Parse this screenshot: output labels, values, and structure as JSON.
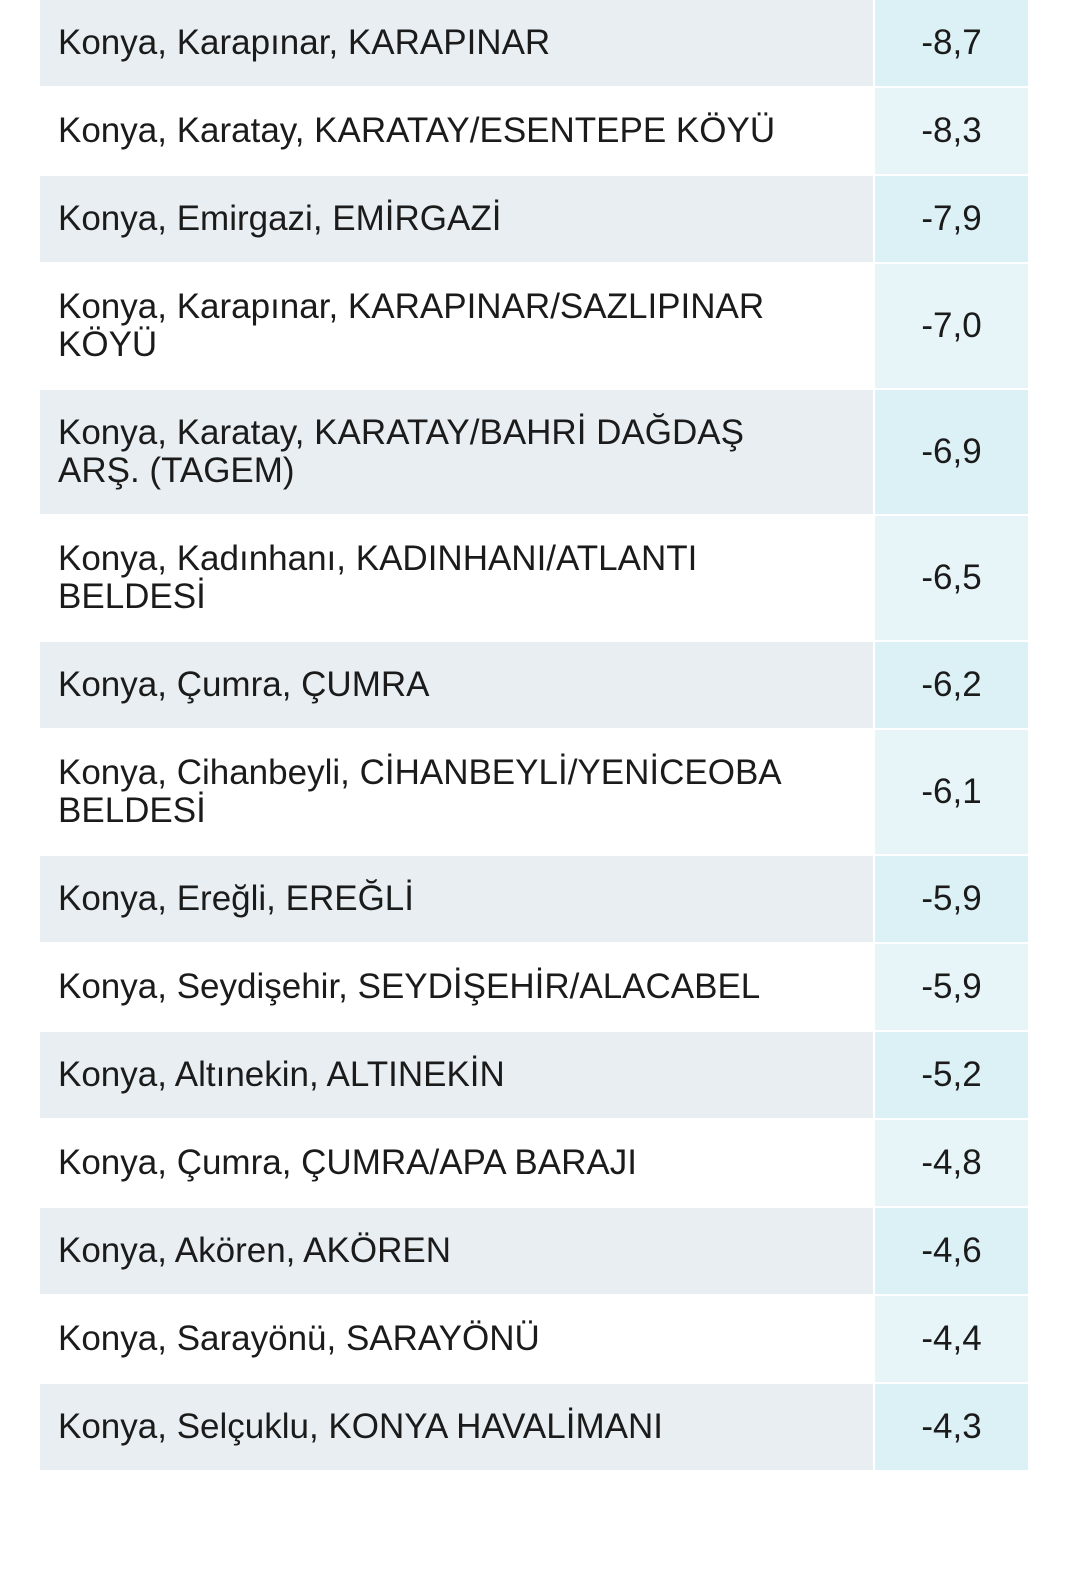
{
  "table": {
    "rows": [
      [
        "Konya, Karapınar, KARAPINAR",
        "-8,7"
      ],
      [
        "Konya, Karatay, KARATAY/ESENTEPE KÖYÜ",
        "-8,3"
      ],
      [
        "Konya, Emirgazi, EMİRGAZİ",
        "-7,9"
      ],
      [
        "Konya, Karapınar, KARAPINAR/SAZLIPINAR KÖYÜ",
        "-7,0"
      ],
      [
        "Konya, Karatay, KARATAY/BAHRİ DAĞDAŞ ARŞ. (TAGEM)",
        "-6,9"
      ],
      [
        "Konya, Kadınhanı, KADINHANI/ATLANTI BELDESİ",
        "-6,5"
      ],
      [
        "Konya, Çumra, ÇUMRA",
        "-6,2"
      ],
      [
        "Konya, Cihanbeyli, CİHANBEYLİ/YENİCEOBA BELDESİ",
        "-6,1"
      ],
      [
        "Konya, Ereğli, EREĞLİ",
        "-5,9"
      ],
      [
        "Konya, Seydişehir, SEYDİŞEHİR/ALACABEL",
        "-5,9"
      ],
      [
        "Konya, Altınekin, ALTINEKİN",
        "-5,2"
      ],
      [
        "Konya, Çumra, ÇUMRA/APA BARAJI",
        "-4,8"
      ],
      [
        "Konya, Akören, AKÖREN",
        "-4,6"
      ],
      [
        "Konya, Sarayönü, SARAYÖNÜ",
        "-4,4"
      ],
      [
        "Konya, Selçuklu, KONYA HAVALİMANI",
        "-4,3"
      ]
    ]
  }
}
